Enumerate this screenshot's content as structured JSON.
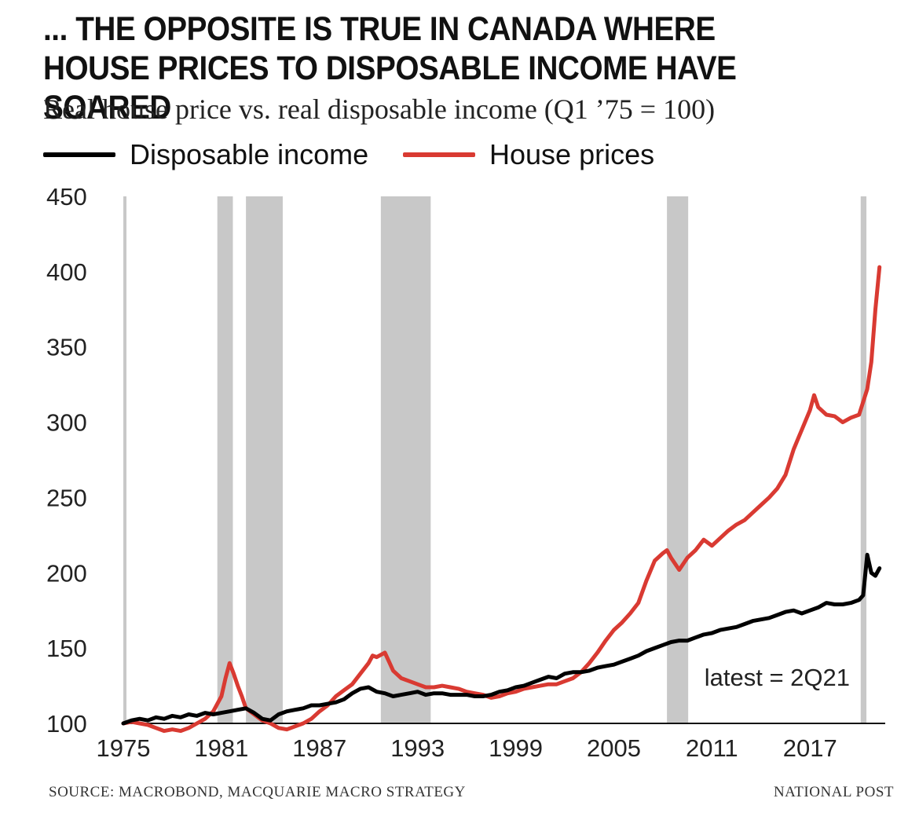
{
  "title": "... THE OPPOSITE IS TRUE IN CANADA WHERE HOUSE PRICES TO DISPOSABLE INCOME HAVE SOARED",
  "subtitle": "Real house price vs. real disposable income (Q1 ’75 = 100)",
  "legend": [
    {
      "label": "Disposable income",
      "color": "#000000"
    },
    {
      "label": "House prices",
      "color": "#d93a32"
    }
  ],
  "footer": {
    "source": "SOURCE: MACROBOND, MACQUARIE MACRO STRATEGY",
    "publisher": "NATIONAL POST"
  },
  "colors": {
    "recession": "#c8c8c8",
    "axis": "#111111",
    "income": "#000000",
    "house": "#d93a32"
  },
  "chart_data": {
    "type": "line",
    "title": "... THE OPPOSITE IS TRUE IN CANADA WHERE HOUSE PRICES TO DISPOSABLE INCOME HAVE SOARED",
    "subtitle": "Real house price vs. real disposable income (Q1 ’75 = 100)",
    "xlabel": "",
    "ylabel": "",
    "xlim": [
      1975,
      2021.6
    ],
    "ylim": [
      100,
      450
    ],
    "x_ticks": [
      1975,
      1981,
      1987,
      1993,
      1999,
      2005,
      2011,
      2017
    ],
    "x_tick_labels": [
      "1975",
      "1981",
      "1987",
      "1993",
      "1999",
      "2005",
      "2011",
      "2017"
    ],
    "y_ticks": [
      100,
      150,
      200,
      250,
      300,
      350,
      400,
      450
    ],
    "y_tick_labels": [
      "100",
      "150",
      "200",
      "250",
      "300",
      "350",
      "400",
      "450"
    ],
    "grid": false,
    "legend_position": "top-left",
    "annotation": "latest = 2Q21",
    "recessions": [
      [
        1975.0,
        1975.15
      ],
      [
        1980.75,
        1981.7
      ],
      [
        1982.5,
        1984.75
      ],
      [
        1990.75,
        1993.8
      ],
      [
        2008.25,
        2009.55
      ],
      [
        2020.1,
        2020.45
      ]
    ],
    "series": [
      {
        "name": "Disposable income",
        "color": "#000000",
        "x": [
          1975,
          1975.5,
          1976,
          1976.5,
          1977,
          1977.5,
          1978,
          1978.5,
          1979,
          1979.5,
          1980,
          1980.5,
          1981,
          1981.5,
          1982,
          1982.5,
          1983,
          1983.5,
          1984,
          1984.5,
          1985,
          1985.5,
          1986,
          1986.5,
          1987,
          1987.5,
          1988,
          1988.5,
          1989,
          1989.5,
          1990,
          1990.5,
          1991,
          1991.5,
          1992,
          1992.5,
          1993,
          1993.5,
          1994,
          1994.5,
          1995,
          1995.5,
          1996,
          1996.5,
          1997,
          1997.5,
          1998,
          1998.5,
          1999,
          1999.5,
          2000,
          2000.5,
          2001,
          2001.5,
          2002,
          2002.5,
          2003,
          2003.5,
          2004,
          2004.5,
          2005,
          2005.5,
          2006,
          2006.5,
          2007,
          2007.5,
          2008,
          2008.5,
          2009,
          2009.5,
          2010,
          2010.5,
          2011,
          2011.5,
          2012,
          2012.5,
          2013,
          2013.5,
          2014,
          2014.5,
          2015,
          2015.5,
          2016,
          2016.5,
          2017,
          2017.5,
          2018,
          2018.5,
          2019,
          2019.5,
          2020,
          2020.25,
          2020.5,
          2020.75,
          2021,
          2021.25
        ],
        "values": [
          100,
          102,
          103,
          102,
          104,
          103,
          105,
          104,
          106,
          105,
          107,
          106,
          107,
          108,
          109,
          110,
          107,
          103,
          102,
          106,
          108,
          109,
          110,
          112,
          112,
          113,
          114,
          116,
          120,
          123,
          124,
          121,
          120,
          118,
          119,
          120,
          121,
          119,
          120,
          120,
          119,
          119,
          119,
          118,
          118,
          119,
          121,
          122,
          124,
          125,
          127,
          129,
          131,
          130,
          133,
          134,
          134,
          135,
          137,
          138,
          139,
          141,
          143,
          145,
          148,
          150,
          152,
          154,
          155,
          155,
          157,
          159,
          160,
          162,
          163,
          164,
          166,
          168,
          169,
          170,
          172,
          174,
          175,
          173,
          175,
          177,
          180,
          179,
          179,
          180,
          182,
          185,
          212,
          200,
          198,
          203
        ]
      },
      {
        "name": "House prices",
        "color": "#d93a32",
        "x": [
          1975,
          1975.5,
          1976,
          1976.5,
          1977,
          1977.5,
          1978,
          1978.5,
          1979,
          1979.5,
          1980,
          1980.5,
          1981,
          1981.25,
          1981.5,
          1981.75,
          1982,
          1982.25,
          1982.5,
          1983,
          1983.5,
          1984,
          1984.5,
          1985,
          1985.5,
          1986,
          1986.5,
          1987,
          1987.5,
          1988,
          1988.5,
          1989,
          1989.5,
          1990,
          1990.25,
          1990.5,
          1991,
          1991.25,
          1991.5,
          1992,
          1992.5,
          1993,
          1993.5,
          1994,
          1994.5,
          1995,
          1995.5,
          1996,
          1996.5,
          1997,
          1997.5,
          1998,
          1998.5,
          1999,
          1999.5,
          2000,
          2000.5,
          2001,
          2001.5,
          2002,
          2002.5,
          2003,
          2003.5,
          2004,
          2004.5,
          2005,
          2005.5,
          2006,
          2006.5,
          2007,
          2007.5,
          2008,
          2008.25,
          2008.5,
          2009,
          2009.5,
          2010,
          2010.5,
          2011,
          2011.5,
          2012,
          2012.5,
          2013,
          2013.5,
          2014,
          2014.5,
          2015,
          2015.5,
          2016,
          2016.5,
          2017,
          2017.25,
          2017.5,
          2018,
          2018.5,
          2019,
          2019.5,
          2020,
          2020.5,
          2020.75,
          2021,
          2021.25
        ],
        "values": [
          100,
          101,
          100,
          99,
          97,
          95,
          96,
          95,
          97,
          100,
          103,
          108,
          118,
          130,
          140,
          133,
          125,
          118,
          110,
          106,
          102,
          100,
          97,
          96,
          98,
          100,
          103,
          108,
          112,
          118,
          122,
          126,
          133,
          140,
          145,
          144,
          147,
          141,
          135,
          130,
          128,
          126,
          124,
          124,
          125,
          124,
          123,
          121,
          120,
          119,
          117,
          118,
          120,
          121,
          123,
          124,
          125,
          126,
          126,
          128,
          130,
          134,
          140,
          147,
          155,
          162,
          167,
          173,
          180,
          195,
          208,
          213,
          215,
          210,
          202,
          210,
          215,
          222,
          218,
          223,
          228,
          232,
          235,
          240,
          245,
          250,
          256,
          265,
          282,
          295,
          308,
          318,
          310,
          305,
          304,
          300,
          303,
          305,
          322,
          340,
          375,
          403
        ]
      }
    ]
  }
}
